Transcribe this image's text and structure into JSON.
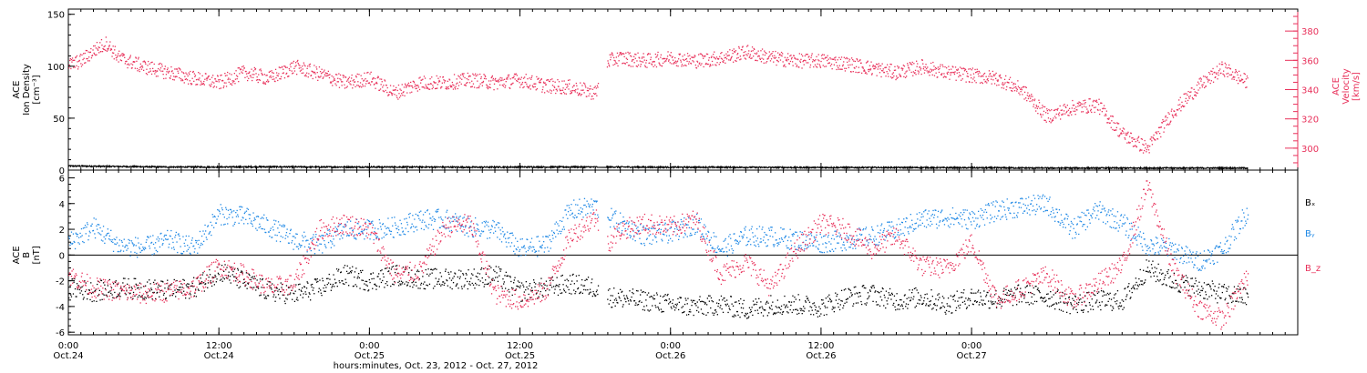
{
  "colors": {
    "black": "#000000",
    "red": "#e8305a",
    "blue": "#1e88e5"
  },
  "chart_data": [
    {
      "type": "scatter",
      "panel": "top",
      "ylabel_lines": [
        "ACE",
        "Ion Density",
        "[cm⁻³]"
      ],
      "ylabel_right_lines": [
        "ACE",
        "Velocity",
        "[km/s]"
      ],
      "ylim": [
        0,
        155
      ],
      "yticks": [
        0,
        50,
        100,
        150
      ],
      "ylim_right": [
        285,
        395
      ],
      "yticks_right": [
        300,
        320,
        340,
        360,
        380
      ],
      "xlim": [
        0,
        98
      ],
      "series": [
        {
          "name": "",
          "axis": "left",
          "color": "black",
          "x": [
            0,
            4,
            8,
            12,
            16,
            20,
            24,
            28,
            32,
            36,
            40,
            44,
            48,
            52,
            56,
            60,
            62.5,
            66,
            70,
            74,
            78,
            82,
            86,
            90,
            94
          ],
          "y": [
            4,
            3.5,
            3,
            3,
            3.2,
            3,
            3,
            3,
            2.8,
            3,
            3,
            3,
            2.8,
            2.8,
            2.6,
            2.5,
            2.5,
            2.5,
            2.3,
            2.2,
            2.0,
            2.0,
            2.0,
            2.0,
            2.0
          ]
        },
        {
          "name": "",
          "axis": "right",
          "color": "red",
          "x": [
            0,
            1,
            2,
            3,
            4,
            6,
            8,
            10,
            12,
            14,
            16,
            18,
            20,
            22,
            24,
            26,
            28,
            30,
            32,
            34,
            36,
            38,
            40,
            42,
            43,
            44,
            46,
            48,
            50,
            52,
            54,
            56,
            58,
            60,
            62,
            64,
            66,
            68,
            70,
            72,
            74,
            76,
            78,
            80,
            82,
            84,
            86,
            88,
            90,
            92,
            94
          ],
          "y": [
            357,
            360,
            367,
            372,
            362,
            356,
            352,
            348,
            345,
            352,
            348,
            356,
            351,
            345,
            348,
            338,
            345,
            345,
            347,
            345,
            347,
            343,
            342,
            338,
            360,
            362,
            360,
            362,
            360,
            362,
            366,
            362,
            360,
            360,
            358,
            355,
            352,
            356,
            352,
            350,
            348,
            340,
            322,
            328,
            330,
            310,
            300,
            325,
            342,
            355,
            345
          ]
        }
      ]
    },
    {
      "type": "scatter",
      "panel": "bottom",
      "ylabel_lines": [
        "ACE",
        "B",
        "[nT]"
      ],
      "ylim": [
        -6.2,
        6.6
      ],
      "yticks": [
        -6,
        -4,
        -2,
        0,
        2,
        4,
        6
      ],
      "xlim": [
        0,
        98
      ],
      "legend_position": "right",
      "series": [
        {
          "name": "Bₓ",
          "color": "black",
          "x": [
            0,
            2,
            4,
            6,
            8,
            10,
            12,
            14,
            16,
            18,
            20,
            22,
            24,
            26,
            28,
            30,
            32,
            34,
            36,
            38,
            40,
            42,
            43,
            44,
            46,
            48,
            50,
            52,
            54,
            56,
            58,
            60,
            62,
            64,
            66,
            68,
            70,
            72,
            74,
            76,
            78,
            80,
            82,
            84,
            86,
            88,
            90,
            92,
            94
          ],
          "y": [
            -2.5,
            -2.8,
            -2.5,
            -2.6,
            -2.7,
            -2.5,
            -1.2,
            -2.0,
            -2.8,
            -3.0,
            -2.5,
            -1.5,
            -2.0,
            -1.5,
            -1.8,
            -1.8,
            -1.8,
            -1.5,
            -2.8,
            -2.5,
            -2.2,
            -2.5,
            -3.2,
            -3.3,
            -3.5,
            -3.8,
            -4.0,
            -3.8,
            -4.2,
            -3.8,
            -3.8,
            -4.0,
            -3.2,
            -3.0,
            -3.5,
            -3.2,
            -3.8,
            -3.2,
            -3.4,
            -3.0,
            -3.2,
            -3.8,
            -3.5,
            -3.5,
            -1.0,
            -2.0,
            -2.5,
            -3.0,
            -3.2
          ]
        },
        {
          "name": "Bᵧ",
          "color": "blue",
          "x": [
            0,
            2,
            4,
            6,
            8,
            10,
            12,
            14,
            16,
            18,
            20,
            22,
            24,
            26,
            28,
            30,
            32,
            34,
            36,
            38,
            40,
            42,
            43,
            44,
            46,
            48,
            50,
            52,
            54,
            56,
            58,
            60,
            62,
            64,
            66,
            68,
            70,
            72,
            74,
            76,
            78,
            80,
            82,
            84,
            86,
            88,
            90,
            92,
            94
          ],
          "y": [
            1.0,
            2.2,
            0.8,
            0.6,
            1.2,
            0.6,
            3.2,
            3.0,
            2.2,
            1.2,
            0.8,
            2.0,
            2.0,
            2.2,
            2.8,
            2.8,
            2.2,
            2.0,
            0.5,
            0.8,
            3.5,
            3.8,
            3.0,
            2.5,
            1.5,
            1.8,
            2.5,
            0.5,
            1.5,
            1.5,
            1.2,
            1.0,
            1.2,
            1.5,
            2.0,
            2.8,
            3.0,
            2.8,
            3.5,
            3.8,
            4.0,
            2.0,
            3.5,
            2.5,
            0.8,
            0.5,
            -0.5,
            0.5,
            3.5
          ]
        },
        {
          "name": "B_z",
          "color": "red",
          "x": [
            0,
            2,
            4,
            6,
            8,
            10,
            12,
            14,
            16,
            18,
            20,
            22,
            24,
            26,
            28,
            30,
            32,
            34,
            36,
            38,
            40,
            42,
            43,
            44,
            46,
            48,
            50,
            52,
            54,
            56,
            58,
            60,
            62,
            64,
            66,
            68,
            70,
            72,
            74,
            76,
            78,
            80,
            82,
            84,
            86,
            88,
            90,
            92,
            94
          ],
          "y": [
            -1.5,
            -2.5,
            -2.8,
            -3.0,
            -2.8,
            -2.5,
            -0.8,
            -1.5,
            -2.5,
            -2.2,
            2.0,
            2.5,
            2.0,
            -1.5,
            -1.2,
            2.2,
            2.5,
            -3.0,
            -3.5,
            -2.8,
            1.5,
            3.0,
            1.0,
            2.0,
            2.5,
            2.2,
            2.8,
            -1.5,
            -0.5,
            -2.5,
            0.5,
            2.5,
            2.0,
            0.5,
            1.5,
            -0.8,
            -1.0,
            1.0,
            -3.5,
            -2.5,
            -1.5,
            -3.5,
            -2.2,
            -0.8,
            5.5,
            -1.0,
            -4.0,
            -5.0,
            -1.5
          ]
        }
      ]
    }
  ],
  "x_axis": {
    "ticks": [
      {
        "x": 0,
        "time": "0:00",
        "date": "Oct.24"
      },
      {
        "x": 12,
        "time": "12:00",
        "date": "Oct.24"
      },
      {
        "x": 24,
        "time": "0:00",
        "date": "Oct.25"
      },
      {
        "x": 36,
        "time": "12:00",
        "date": "Oct.25"
      },
      {
        "x": 48,
        "time": "0:00",
        "date": "Oct.26"
      },
      {
        "x": 60,
        "time": "12:00",
        "date": "Oct.26"
      },
      {
        "x": 72,
        "time": "0:00",
        "date": "Oct.27"
      }
    ],
    "xlabel": "hours:minutes, Oct. 23, 2012 - Oct. 27, 2012"
  }
}
